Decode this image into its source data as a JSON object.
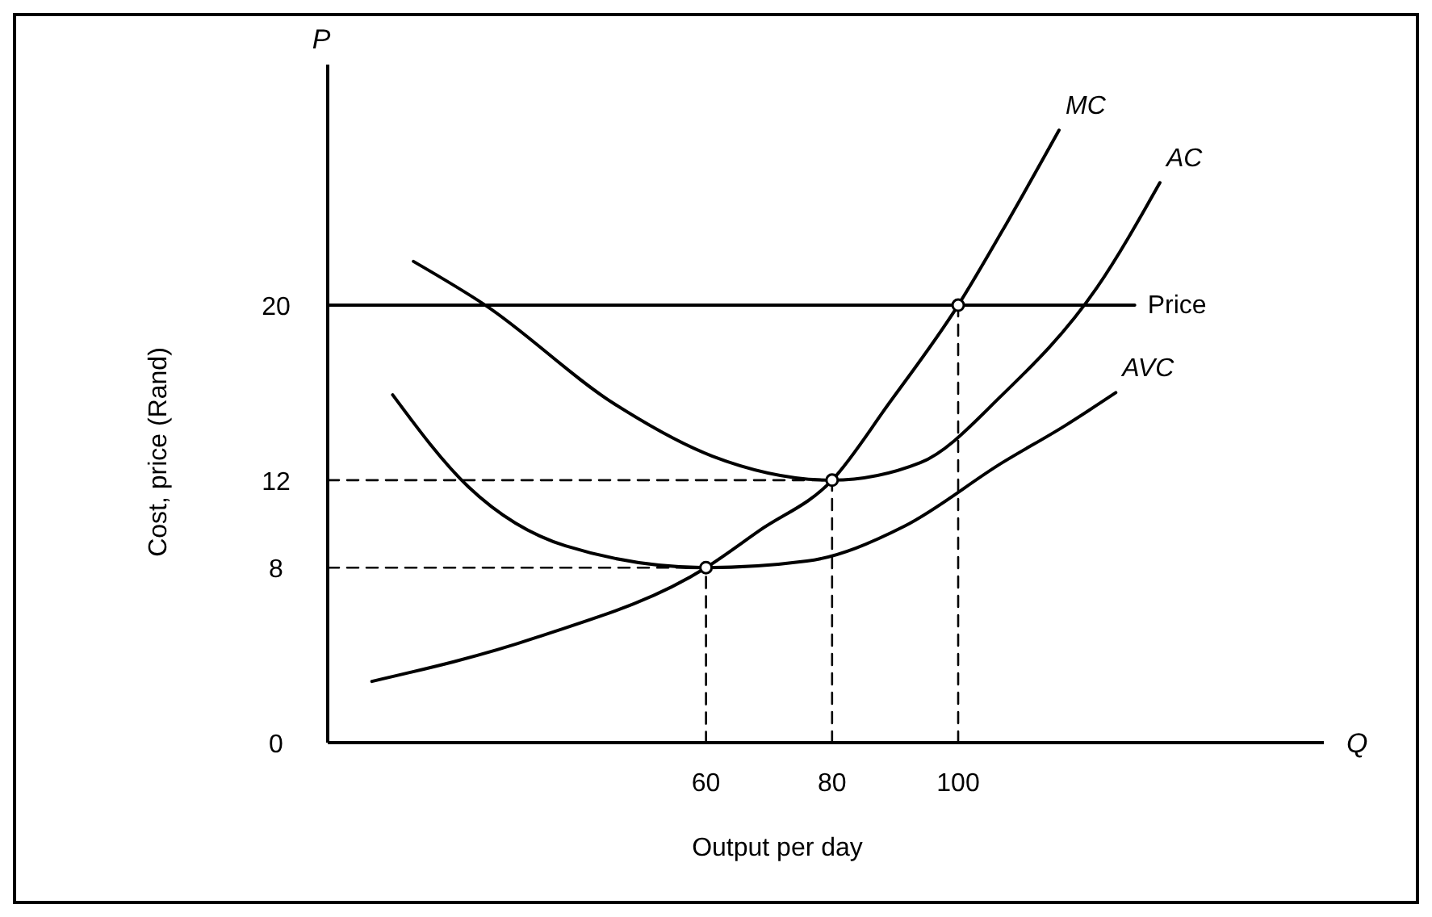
{
  "chart_data": {
    "type": "line",
    "xlabel": "Output per day",
    "ylabel": "Cost, price (Rand)",
    "annotations": [
      "P",
      "Q"
    ],
    "xlim": [
      0,
      158
    ],
    "ylim": [
      0,
      31
    ],
    "xticks": [
      60,
      80,
      100
    ],
    "yticks": [
      0,
      8,
      12,
      20
    ],
    "grid": false,
    "series": [
      {
        "name": "MC",
        "color": "#000000",
        "x": [
          7,
          33,
          60,
          68.5,
          80,
          89,
          100,
          108,
          116
        ],
        "values": [
          2.8,
          4.8,
          8,
          9.7,
          12,
          15.5,
          20,
          23.9,
          28
        ]
      },
      {
        "name": "AC",
        "color": "#000000",
        "x": [
          13.6,
          25,
          45.4,
          61,
          80,
          94,
          107,
          122,
          132
        ],
        "values": [
          22,
          20,
          15.5,
          13.1,
          12,
          12.8,
          15.9,
          20.8,
          25.6
        ]
      },
      {
        "name": "AVC",
        "color": "#000000",
        "x": [
          10.3,
          22.3,
          37.7,
          60,
          76,
          91.5,
          107,
          117,
          125
        ],
        "values": [
          15.9,
          11.7,
          9,
          8,
          8.3,
          9.9,
          12.8,
          14.5,
          16
        ]
      },
      {
        "name": "Price",
        "color": "#000000",
        "x": [
          0,
          128
        ],
        "values": [
          20,
          20
        ]
      },
      {
        "type": "line",
        "line_style": "dashed",
        "color": "#000000",
        "x": [
          0,
          60,
          60
        ],
        "values": [
          8,
          8,
          0
        ]
      },
      {
        "type": "line",
        "line_style": "dashed",
        "color": "#000000",
        "x": [
          0,
          80,
          80
        ],
        "values": [
          12,
          12,
          0
        ]
      },
      {
        "type": "line",
        "line_style": "dashed",
        "color": "#000000",
        "x": [
          100,
          100
        ],
        "values": [
          20,
          0
        ]
      },
      {
        "type": "scatter",
        "marker": "circle",
        "color": "#000000",
        "x": [
          60,
          80,
          100
        ],
        "values": [
          8,
          12,
          20
        ]
      }
    ]
  }
}
